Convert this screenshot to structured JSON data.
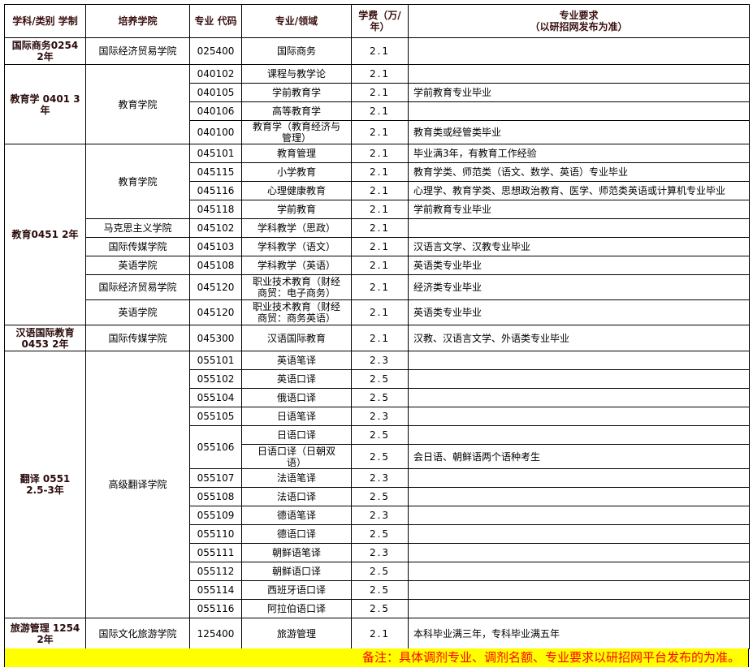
{
  "headers": [
    "学科/类别 学制",
    "培养学院",
    "专业 代码",
    "专业/领域",
    "学费（万/年）",
    "专业要求\n（以研招网发布为准）"
  ],
  "groups": [
    {
      "discipline": "国际商务0254\n2年",
      "colleges": [
        {
          "name": "国际经济贸易学院",
          "programs": [
            {
              "code": "025400",
              "majors": [
                {
                  "name": "国际商务",
                  "fee": "2.1",
                  "req": ""
                }
              ]
            }
          ]
        }
      ]
    },
    {
      "discipline": "教育学 0401 3\n年",
      "colleges": [
        {
          "name": "教育学院",
          "programs": [
            {
              "code": "040102",
              "majors": [
                {
                  "name": "课程与教学论",
                  "fee": "2.1",
                  "req": ""
                }
              ]
            },
            {
              "code": "040105",
              "majors": [
                {
                  "name": "学前教育学",
                  "fee": "2.1",
                  "req": "学前教育专业毕业"
                }
              ]
            },
            {
              "code": "040106",
              "majors": [
                {
                  "name": "高等教育学",
                  "fee": "2.1",
                  "req": ""
                }
              ]
            },
            {
              "code": "040100",
              "majors": [
                {
                  "name": "教育学（教育经济与\n管理）",
                  "fee": "2.1",
                  "req": "教育类或经管类毕业"
                }
              ]
            }
          ]
        }
      ]
    },
    {
      "discipline": "教育0451 2年",
      "colleges": [
        {
          "name": "教育学院",
          "programs": [
            {
              "code": "045101",
              "majors": [
                {
                  "name": "教育管理",
                  "fee": "2.1",
                  "req": "毕业满3年，有教育工作经验"
                }
              ]
            },
            {
              "code": "045115",
              "majors": [
                {
                  "name": "小学教育",
                  "fee": "2.1",
                  "req": "教育学类、师范类（语文、数学、英语）专业毕业"
                }
              ]
            },
            {
              "code": "045116",
              "majors": [
                {
                  "name": "心理健康教育",
                  "fee": "2.1",
                  "req": "心理学、教育学类、思想政治教育、医学、师范类英语或计算机专业毕业"
                }
              ]
            },
            {
              "code": "045118",
              "majors": [
                {
                  "name": "学前教育",
                  "fee": "2.1",
                  "req": "学前教育专业毕业"
                }
              ]
            }
          ]
        },
        {
          "name": "马克思主义学院",
          "programs": [
            {
              "code": "045102",
              "majors": [
                {
                  "name": "学科教学（思政）",
                  "fee": "2.1",
                  "req": ""
                }
              ]
            }
          ]
        },
        {
          "name": "国际传媒学院",
          "programs": [
            {
              "code": "045103",
              "majors": [
                {
                  "name": "学科教学（语文）",
                  "fee": "2.1",
                  "req": "汉语言文学、汉教专业毕业"
                }
              ]
            }
          ]
        },
        {
          "name": "英语学院",
          "programs": [
            {
              "code": "045108",
              "majors": [
                {
                  "name": "学科教学（英语）",
                  "fee": "2.1",
                  "req": "英语类专业毕业"
                }
              ]
            }
          ]
        },
        {
          "name": "国际经济贸易学院",
          "programs": [
            {
              "code": "045120",
              "majors": [
                {
                  "name": "职业技术教育（财经\n商贸：电子商务）",
                  "fee": "2.1",
                  "req": "经济类专业毕业"
                }
              ]
            }
          ]
        },
        {
          "name": "英语学院",
          "programs": [
            {
              "code": "045120",
              "majors": [
                {
                  "name": "职业技术教育（财经\n商贸：商务英语）",
                  "fee": "2.1",
                  "req": "英语类专业毕业"
                }
              ]
            }
          ]
        }
      ]
    },
    {
      "discipline": "汉语国际教育\n0453 2年",
      "colleges": [
        {
          "name": "国际传媒学院",
          "programs": [
            {
              "code": "045300",
              "majors": [
                {
                  "name": "汉语国际教育",
                  "fee": "2.1",
                  "req": "汉教、汉语言文学、外语类专业毕业"
                }
              ]
            }
          ]
        }
      ]
    },
    {
      "discipline": "翻译 0551\n2.5-3年",
      "colleges": [
        {
          "name": "高级翻译学院",
          "programs": [
            {
              "code": "055101",
              "majors": [
                {
                  "name": "英语笔译",
                  "fee": "2.3",
                  "req": ""
                }
              ]
            },
            {
              "code": "055102",
              "majors": [
                {
                  "name": "英语口译",
                  "fee": "2.5",
                  "req": ""
                }
              ]
            },
            {
              "code": "055104",
              "majors": [
                {
                  "name": "俄语口译",
                  "fee": "2.5",
                  "req": ""
                }
              ]
            },
            {
              "code": "055105",
              "majors": [
                {
                  "name": "日语笔译",
                  "fee": "2.3",
                  "req": ""
                }
              ]
            },
            {
              "code": "055106",
              "majors": [
                {
                  "name": "日语口译",
                  "fee": "2.5",
                  "req": ""
                },
                {
                  "name": "日语口译（日朝双\n语）",
                  "fee": "2.5",
                  "req": "会日语、朝鲜语两个语种考生"
                }
              ]
            },
            {
              "code": "055107",
              "majors": [
                {
                  "name": "法语笔译",
                  "fee": "2.3",
                  "req": ""
                }
              ]
            },
            {
              "code": "055108",
              "majors": [
                {
                  "name": "法语口译",
                  "fee": "2.5",
                  "req": ""
                }
              ]
            },
            {
              "code": "055109",
              "majors": [
                {
                  "name": "德语笔译",
                  "fee": "2.3",
                  "req": ""
                }
              ]
            },
            {
              "code": "055110",
              "majors": [
                {
                  "name": "德语口译",
                  "fee": "2.5",
                  "req": ""
                }
              ]
            },
            {
              "code": "055111",
              "majors": [
                {
                  "name": "朝鲜语笔译",
                  "fee": "2.3",
                  "req": ""
                }
              ]
            },
            {
              "code": "055112",
              "majors": [
                {
                  "name": "朝鲜语口译",
                  "fee": "2.5",
                  "req": ""
                }
              ]
            },
            {
              "code": "055114",
              "majors": [
                {
                  "name": "西班牙语口译",
                  "fee": "2.5",
                  "req": ""
                }
              ]
            },
            {
              "code": "055116",
              "majors": [
                {
                  "name": "阿拉伯语口译",
                  "fee": "2.5",
                  "req": ""
                }
              ]
            }
          ]
        }
      ]
    },
    {
      "discipline": "旅游管理 1254\n2年",
      "colleges": [
        {
          "name": "国际文化旅游学院",
          "programs": [
            {
              "code": "125400",
              "majors": [
                {
                  "name": "旅游管理",
                  "fee": "2.1",
                  "req": "本科毕业满三年，专科毕业满五年"
                }
              ]
            }
          ]
        }
      ]
    }
  ],
  "note": "备注：具体调剂专业、调剂名额、专业要求以研招网平台发布的为准。",
  "colors": {
    "note_background": "#ffff00",
    "note_text": "#ff0000"
  }
}
